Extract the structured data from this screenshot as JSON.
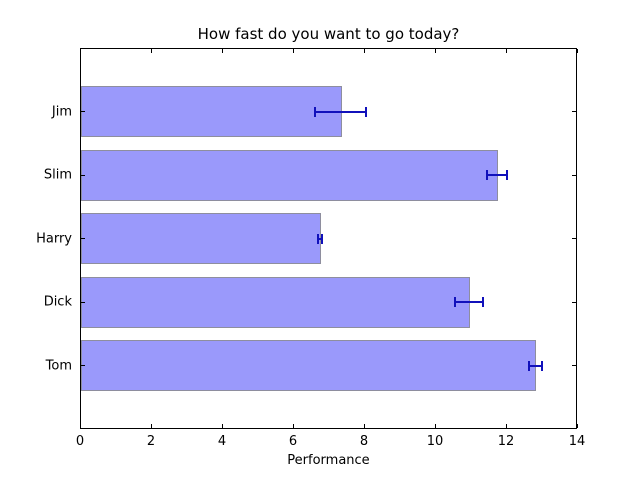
{
  "chart_data": {
    "type": "bar",
    "orientation": "horizontal",
    "title": "How fast do you want to go today?",
    "xlabel": "Performance",
    "ylabel": "",
    "categories": [
      "Jim",
      "Slim",
      "Harry",
      "Dick",
      "Tom"
    ],
    "categories_order": "top to bottom",
    "values": [
      7.35,
      11.75,
      6.76,
      10.95,
      12.83
    ],
    "xerr": [
      0.72,
      0.28,
      0.06,
      0.39,
      0.19
    ],
    "xlim": [
      0,
      14
    ],
    "xticks": [
      0,
      2,
      4,
      6,
      8,
      10,
      12,
      14
    ],
    "grid": false,
    "legend": false,
    "colors": {
      "bar_fill": "#9a99fb",
      "bar_edge": "#8e8e9e",
      "error_bar": "#1111bb",
      "axis": "#000000",
      "background": "#ffffff"
    }
  }
}
